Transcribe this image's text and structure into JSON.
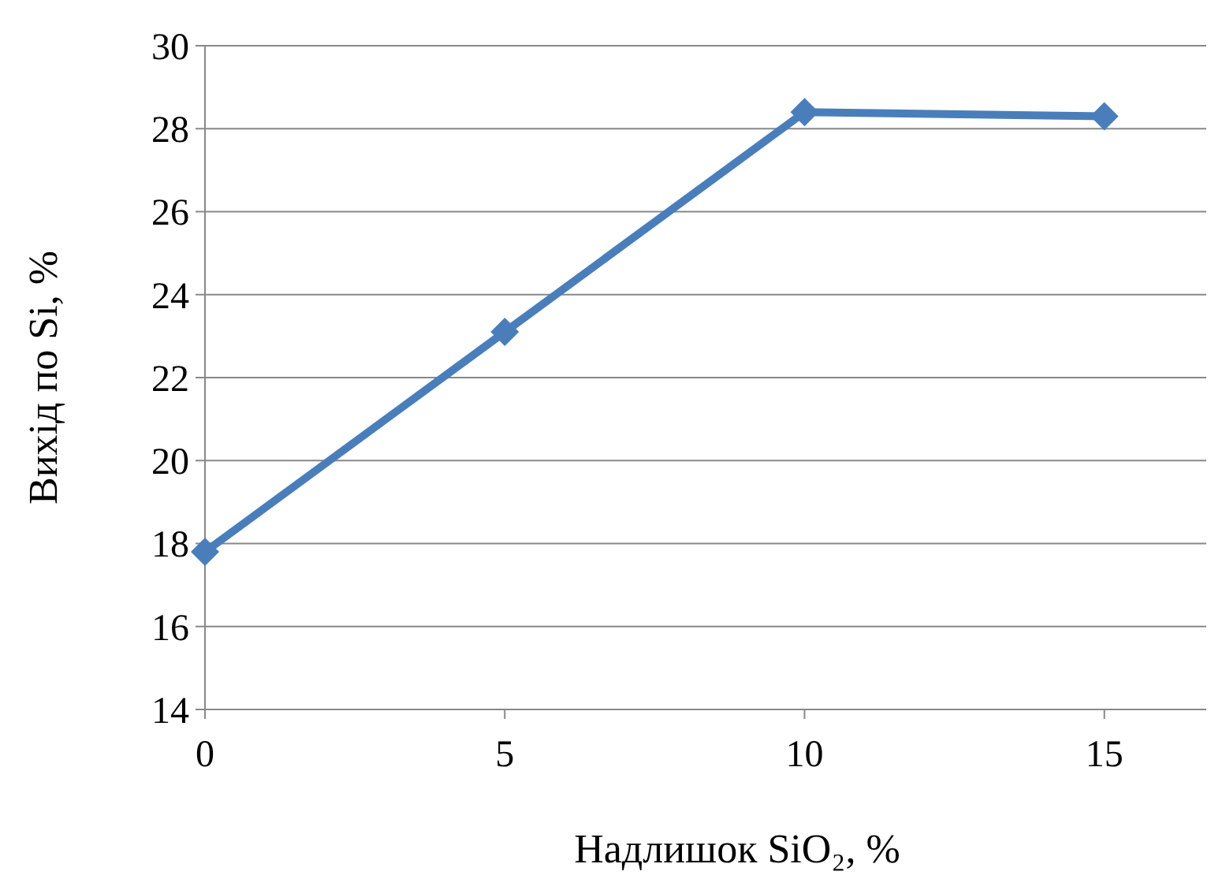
{
  "chart_data": {
    "type": "line",
    "xlabel": "Надлишок SiO₂, %",
    "ylabel": "Вихід по Si, %",
    "x": [
      0,
      5,
      10,
      15
    ],
    "series": [
      {
        "color": "#4a7ebb",
        "values": [
          17.8,
          23.1,
          28.4,
          28.3
        ]
      }
    ],
    "xlim": [
      0,
      16.7
    ],
    "xticks": [
      0,
      5,
      10,
      15
    ],
    "ylim": [
      14,
      30
    ],
    "yticks": [
      14,
      16,
      18,
      20,
      22,
      24,
      26,
      28,
      30
    ],
    "grid": "y",
    "marker": "diamond",
    "line_style": "solid"
  }
}
